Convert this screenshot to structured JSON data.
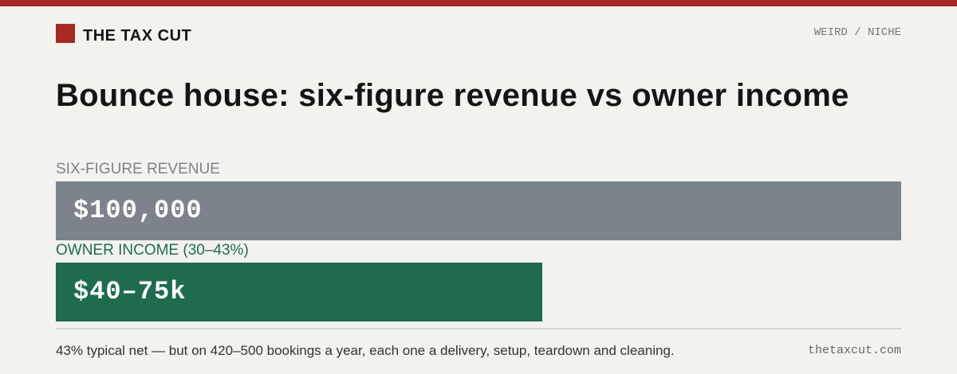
{
  "brand": "THE TAX CUT",
  "tag": "WEIRD / NICHE",
  "chart_data": {
    "type": "bar",
    "orientation": "horizontal",
    "title": "Bounce house: six-figure revenue vs owner income",
    "categories": [
      "SIX-FIGURE REVENUE",
      "OWNER INCOME (30–43%)"
    ],
    "values": [
      100000,
      57500
    ],
    "value_labels": [
      "$100,000",
      "$40–75k"
    ],
    "colors": [
      "#7d838c",
      "#1e6b4e"
    ],
    "xlim": [
      0,
      100000
    ]
  },
  "footer": {
    "note": "43% typical net — but on 420–500 bookings a year, each one a delivery, setup, teardown and cleaning.",
    "site": "thetaxcut.com"
  }
}
